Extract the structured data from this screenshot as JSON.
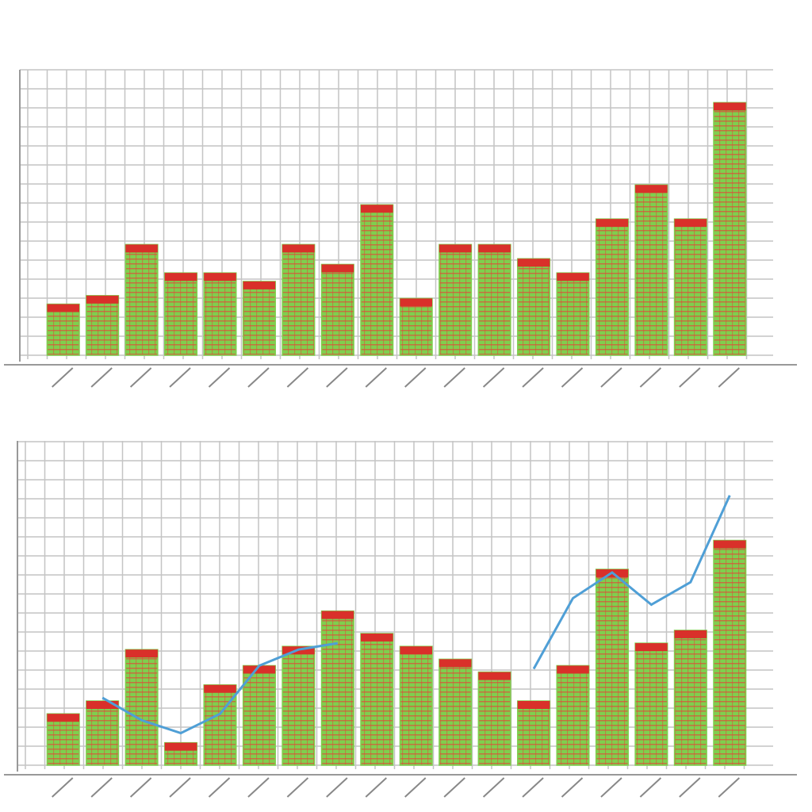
{
  "chart_data": [
    {
      "type": "bar",
      "color": "#7fcf4e",
      "top_color": "#d9302a",
      "grid": true,
      "ylim": [
        0,
        100
      ],
      "categories": [
        null,
        null,
        null,
        null,
        null,
        null,
        null,
        null,
        null,
        null,
        null,
        null,
        null,
        null,
        null,
        null,
        null,
        null
      ],
      "values": [
        18,
        21,
        39,
        29,
        29,
        26,
        39,
        32,
        53,
        20,
        39,
        39,
        34,
        29,
        48,
        60,
        48,
        89
      ]
    },
    {
      "type": "bar_line",
      "grid": true,
      "ylim": [
        0,
        100
      ],
      "categories": [
        null,
        null,
        null,
        null,
        null,
        null,
        null,
        null,
        null,
        null,
        null,
        null,
        null,
        null,
        null,
        null,
        null,
        null
      ],
      "series": [
        {
          "type": "bar",
          "color": "#7fcf4e",
          "top_color": "#d9302a",
          "values": [
            16,
            20,
            36,
            7,
            25,
            31,
            37,
            48,
            41,
            37,
            33,
            29,
            20,
            31,
            61,
            38,
            42,
            70
          ]
        },
        {
          "type": "line",
          "color": "#4f9fd6",
          "values": [
            null,
            21,
            14,
            10,
            16,
            31,
            36,
            38,
            null,
            null,
            null,
            null,
            30,
            52,
            60,
            50,
            57,
            84
          ]
        }
      ]
    }
  ]
}
